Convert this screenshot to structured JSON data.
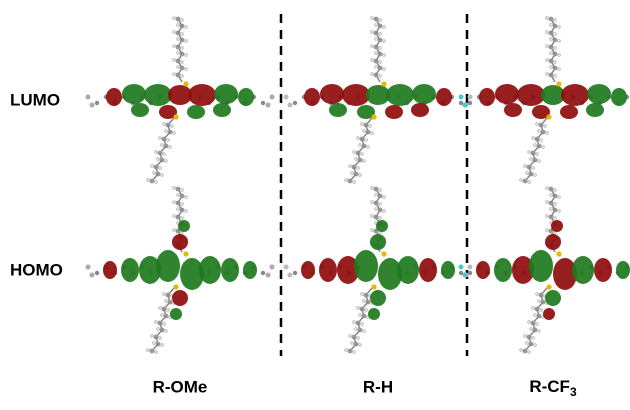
{
  "rows": [
    {
      "label": "LUMO"
    },
    {
      "label": "HOMO"
    }
  ],
  "columns": [
    {
      "label": "R-OMe"
    },
    {
      "label": "R-H"
    },
    {
      "label": "R-CF",
      "subscript": "3"
    }
  ]
}
